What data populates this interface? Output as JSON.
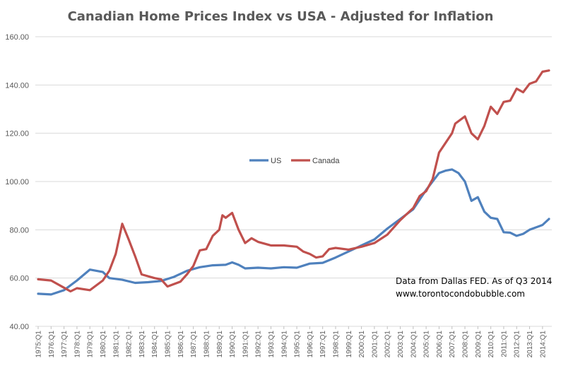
{
  "chart_data": {
    "type": "line",
    "title": "Canadian  Home Prices Index vs USA - Adjusted  for Inflation",
    "xlabel": "",
    "ylabel": "",
    "ylim": [
      40,
      160
    ],
    "yticks": [
      "40.00",
      "60.00",
      "80.00",
      "100.00",
      "120.00",
      "140.00",
      "160.00"
    ],
    "xticks": [
      "1975:Q1",
      "1976:Q1",
      "1977:Q1",
      "1978:Q1",
      "1979:Q1",
      "1980:Q1",
      "1981:Q1",
      "1982:Q1",
      "1983:Q1",
      "1984:Q1",
      "1985:Q1",
      "1986:Q1",
      "1987:Q1",
      "1988:Q1",
      "1989:Q1",
      "1990:Q1",
      "1991:Q1",
      "1992:Q1",
      "1993:Q1",
      "1994:Q1",
      "1995:Q1",
      "1996:Q1",
      "1997:Q1",
      "1998:Q1",
      "1999:Q1",
      "2000:Q1",
      "2001:Q1",
      "2002:Q1",
      "2003:Q1",
      "2004:Q1",
      "2005:Q1",
      "2006:Q1",
      "2007:Q1",
      "2008:Q1",
      "2009:Q1",
      "2010:Q1",
      "2011:Q1",
      "2012:Q1",
      "2013:Q1",
      "2014:Q1"
    ],
    "x_start": "1975:Q1",
    "x_end": "2014:Q3",
    "grid": true,
    "legend_position": "center",
    "series": [
      {
        "name": "US",
        "color": "#4f81bd",
        "keypoints": [
          [
            "1975:Q1",
            53.5
          ],
          [
            "1976:Q1",
            53.2
          ],
          [
            "1977:Q1",
            55.0
          ],
          [
            "1978:Q1",
            59.0
          ],
          [
            "1979:Q1",
            63.5
          ],
          [
            "1980:Q1",
            62.5
          ],
          [
            "1980:Q3",
            60.0
          ],
          [
            "1981:Q3",
            59.3
          ],
          [
            "1982:Q3",
            58.0
          ],
          [
            "1983:Q3",
            58.3
          ],
          [
            "1984:Q3",
            58.8
          ],
          [
            "1985:Q3",
            60.5
          ],
          [
            "1986:Q3",
            63.0
          ],
          [
            "1987:Q3",
            64.5
          ],
          [
            "1988:Q3",
            65.3
          ],
          [
            "1989:Q3",
            65.5
          ],
          [
            "1990:Q1",
            66.5
          ],
          [
            "1990:Q3",
            65.5
          ],
          [
            "1991:Q1",
            64.0
          ],
          [
            "1992:Q1",
            64.3
          ],
          [
            "1993:Q1",
            64.0
          ],
          [
            "1994:Q1",
            64.5
          ],
          [
            "1995:Q1",
            64.3
          ],
          [
            "1996:Q1",
            66.0
          ],
          [
            "1997:Q1",
            66.3
          ],
          [
            "1998:Q1",
            68.5
          ],
          [
            "1999:Q1",
            71.0
          ],
          [
            "2000:Q1",
            73.5
          ],
          [
            "2001:Q1",
            76.0
          ],
          [
            "2002:Q1",
            80.5
          ],
          [
            "2003:Q1",
            84.5
          ],
          [
            "2004:Q1",
            88.5
          ],
          [
            "2005:Q1",
            96.5
          ],
          [
            "2006:Q1",
            103.5
          ],
          [
            "2006:Q3",
            104.5
          ],
          [
            "2007:Q1",
            105.0
          ],
          [
            "2007:Q3",
            103.5
          ],
          [
            "2008:Q1",
            100.0
          ],
          [
            "2008:Q3",
            92.0
          ],
          [
            "2009:Q1",
            93.5
          ],
          [
            "2009:Q3",
            87.5
          ],
          [
            "2010:Q1",
            85.0
          ],
          [
            "2010:Q3",
            84.5
          ],
          [
            "2011:Q1",
            79.0
          ],
          [
            "2011:Q3",
            78.8
          ],
          [
            "2012:Q1",
            77.5
          ],
          [
            "2012:Q3",
            78.3
          ],
          [
            "2013:Q1",
            80.0
          ],
          [
            "2014:Q1",
            82.0
          ],
          [
            "2014:Q3",
            84.5
          ]
        ]
      },
      {
        "name": "Canada",
        "color": "#c0504d",
        "keypoints": [
          [
            "1975:Q1",
            59.5
          ],
          [
            "1976:Q1",
            59.0
          ],
          [
            "1977:Q1",
            56.0
          ],
          [
            "1977:Q3",
            54.5
          ],
          [
            "1978:Q1",
            55.8
          ],
          [
            "1979:Q1",
            55.0
          ],
          [
            "1980:Q1",
            59.0
          ],
          [
            "1980:Q3",
            63.0
          ],
          [
            "1981:Q1",
            70.0
          ],
          [
            "1981:Q3",
            82.5
          ],
          [
            "1982:Q1",
            76.0
          ],
          [
            "1982:Q3",
            69.0
          ],
          [
            "1983:Q1",
            61.5
          ],
          [
            "1984:Q1",
            60.0
          ],
          [
            "1984:Q3",
            59.5
          ],
          [
            "1985:Q1",
            56.5
          ],
          [
            "1986:Q1",
            58.5
          ],
          [
            "1986:Q3",
            61.5
          ],
          [
            "1987:Q1",
            65.0
          ],
          [
            "1987:Q3",
            71.5
          ],
          [
            "1988:Q1",
            72.0
          ],
          [
            "1988:Q3",
            77.5
          ],
          [
            "1989:Q1",
            80.0
          ],
          [
            "1989:Q2",
            86.0
          ],
          [
            "1989:Q3",
            85.0
          ],
          [
            "1990:Q1",
            87.0
          ],
          [
            "1990:Q3",
            80.0
          ],
          [
            "1991:Q1",
            74.5
          ],
          [
            "1991:Q3",
            76.5
          ],
          [
            "1992:Q1",
            75.0
          ],
          [
            "1993:Q1",
            73.5
          ],
          [
            "1994:Q1",
            73.5
          ],
          [
            "1995:Q1",
            73.0
          ],
          [
            "1995:Q3",
            71.0
          ],
          [
            "1996:Q1",
            70.0
          ],
          [
            "1996:Q3",
            68.5
          ],
          [
            "1997:Q1",
            69.0
          ],
          [
            "1997:Q3",
            72.0
          ],
          [
            "1998:Q1",
            72.5
          ],
          [
            "1999:Q1",
            71.8
          ],
          [
            "2000:Q1",
            73.0
          ],
          [
            "2001:Q1",
            74.5
          ],
          [
            "2002:Q1",
            78.0
          ],
          [
            "2003:Q1",
            84.0
          ],
          [
            "2004:Q1",
            89.0
          ],
          [
            "2004:Q3",
            94.0
          ],
          [
            "2005:Q1",
            96.0
          ],
          [
            "2005:Q3",
            101.0
          ],
          [
            "2006:Q1",
            112.0
          ],
          [
            "2006:Q3",
            116.0
          ],
          [
            "2007:Q1",
            120.0
          ],
          [
            "2007:Q2",
            124.0
          ],
          [
            "2008:Q1",
            127.0
          ],
          [
            "2008:Q3",
            120.0
          ],
          [
            "2009:Q1",
            117.5
          ],
          [
            "2009:Q3",
            123.0
          ],
          [
            "2010:Q1",
            131.0
          ],
          [
            "2010:Q3",
            128.0
          ],
          [
            "2011:Q1",
            133.0
          ],
          [
            "2011:Q3",
            133.5
          ],
          [
            "2012:Q1",
            138.5
          ],
          [
            "2012:Q3",
            137.0
          ],
          [
            "2013:Q1",
            140.5
          ],
          [
            "2013:Q3",
            141.5
          ],
          [
            "2014:Q1",
            145.5
          ],
          [
            "2014:Q3",
            146.0
          ]
        ]
      }
    ],
    "annotations": [
      "Data from Dallas FED. As of Q3 2014",
      "www.torontocondobubble.com"
    ]
  },
  "colors": {
    "grid": "#d9d9d9",
    "text": "#595959",
    "background": "#ffffff"
  }
}
